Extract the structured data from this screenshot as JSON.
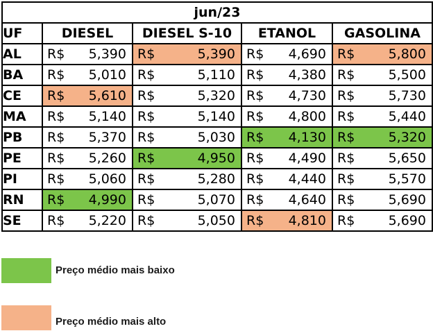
{
  "chart_data": {
    "type": "table",
    "title": "jun/23",
    "uf_header": "UF",
    "currency": "R$",
    "columns": [
      "DIESEL",
      "DIESEL S-10",
      "ETANOL",
      "GASOLINA"
    ],
    "rows": [
      {
        "uf": "AL",
        "values": [
          "5,390",
          "5,390",
          "4,690",
          "5,800"
        ],
        "highlight": [
          "",
          "high",
          "",
          "high"
        ]
      },
      {
        "uf": "BA",
        "values": [
          "5,010",
          "5,110",
          "4,380",
          "5,500"
        ],
        "highlight": [
          "",
          "",
          "",
          ""
        ]
      },
      {
        "uf": "CE",
        "values": [
          "5,610",
          "5,320",
          "4,730",
          "5,730"
        ],
        "highlight": [
          "high",
          "",
          "",
          ""
        ]
      },
      {
        "uf": "MA",
        "values": [
          "5,140",
          "5,140",
          "4,800",
          "5,440"
        ],
        "highlight": [
          "",
          "",
          "",
          ""
        ]
      },
      {
        "uf": "PB",
        "values": [
          "5,370",
          "5,030",
          "4,130",
          "5,320"
        ],
        "highlight": [
          "",
          "",
          "low",
          "low"
        ]
      },
      {
        "uf": "PE",
        "values": [
          "5,260",
          "4,950",
          "4,490",
          "5,650"
        ],
        "highlight": [
          "",
          "low",
          "",
          ""
        ]
      },
      {
        "uf": "PI",
        "values": [
          "5,060",
          "5,280",
          "4,440",
          "5,570"
        ],
        "highlight": [
          "",
          "",
          "",
          ""
        ]
      },
      {
        "uf": "RN",
        "values": [
          "4,990",
          "5,070",
          "4,640",
          "5,690"
        ],
        "highlight": [
          "low",
          "",
          "",
          ""
        ]
      },
      {
        "uf": "SE",
        "values": [
          "5,220",
          "5,050",
          "4,810",
          "5,690"
        ],
        "highlight": [
          "",
          "",
          "high",
          ""
        ]
      }
    ],
    "legend": [
      {
        "label": "Preço médio mais baixo",
        "color": "#7cc54a"
      },
      {
        "label": "Preço médio mais alto",
        "color": "#f5b289"
      }
    ]
  }
}
